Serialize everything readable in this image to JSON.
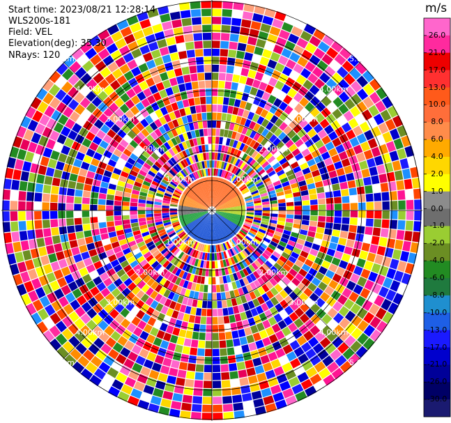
{
  "header": {
    "start_time": "Start time: 2023/08/21 12:28:14",
    "instrument": "WLS200s-181",
    "field": "Field: VEL",
    "elevation": "Elevation(deg): 35.30",
    "nrays": "NRays: 120"
  },
  "colorbar": {
    "unit": "m/s",
    "labels": [
      "26.0",
      "21.0",
      "17.0",
      "13.0",
      "10.0",
      "8.0",
      "6.0",
      "4.0",
      "2.0",
      "1.0",
      "0.0",
      "-1.0",
      "-2.0",
      "-4.0",
      "-6.0",
      "-8.0",
      "-10.0",
      "-13.0",
      "-17.0",
      "-21.0",
      "-26.0",
      "-30.0"
    ],
    "colors": [
      "#ff66cc",
      "#ff2a9e",
      "#ee0000",
      "#ff3030",
      "#ff5a1a",
      "#ff6e3a",
      "#ff8c4a",
      "#ffaa00",
      "#ffd700",
      "#ffff00",
      "#8c8c8c",
      "#6e6e6e",
      "#9acd32",
      "#6b8e23",
      "#228b22",
      "#1f7a3e",
      "#1f8fcf",
      "#1e5fe6",
      "#1a1aff",
      "#0000cd",
      "#000099",
      "#000066",
      "#1a1a70"
    ]
  },
  "range_rings": {
    "labels": [
      "1.00km",
      "2.00km",
      "3.00km",
      "4.00km",
      "5.00km"
    ]
  }
}
